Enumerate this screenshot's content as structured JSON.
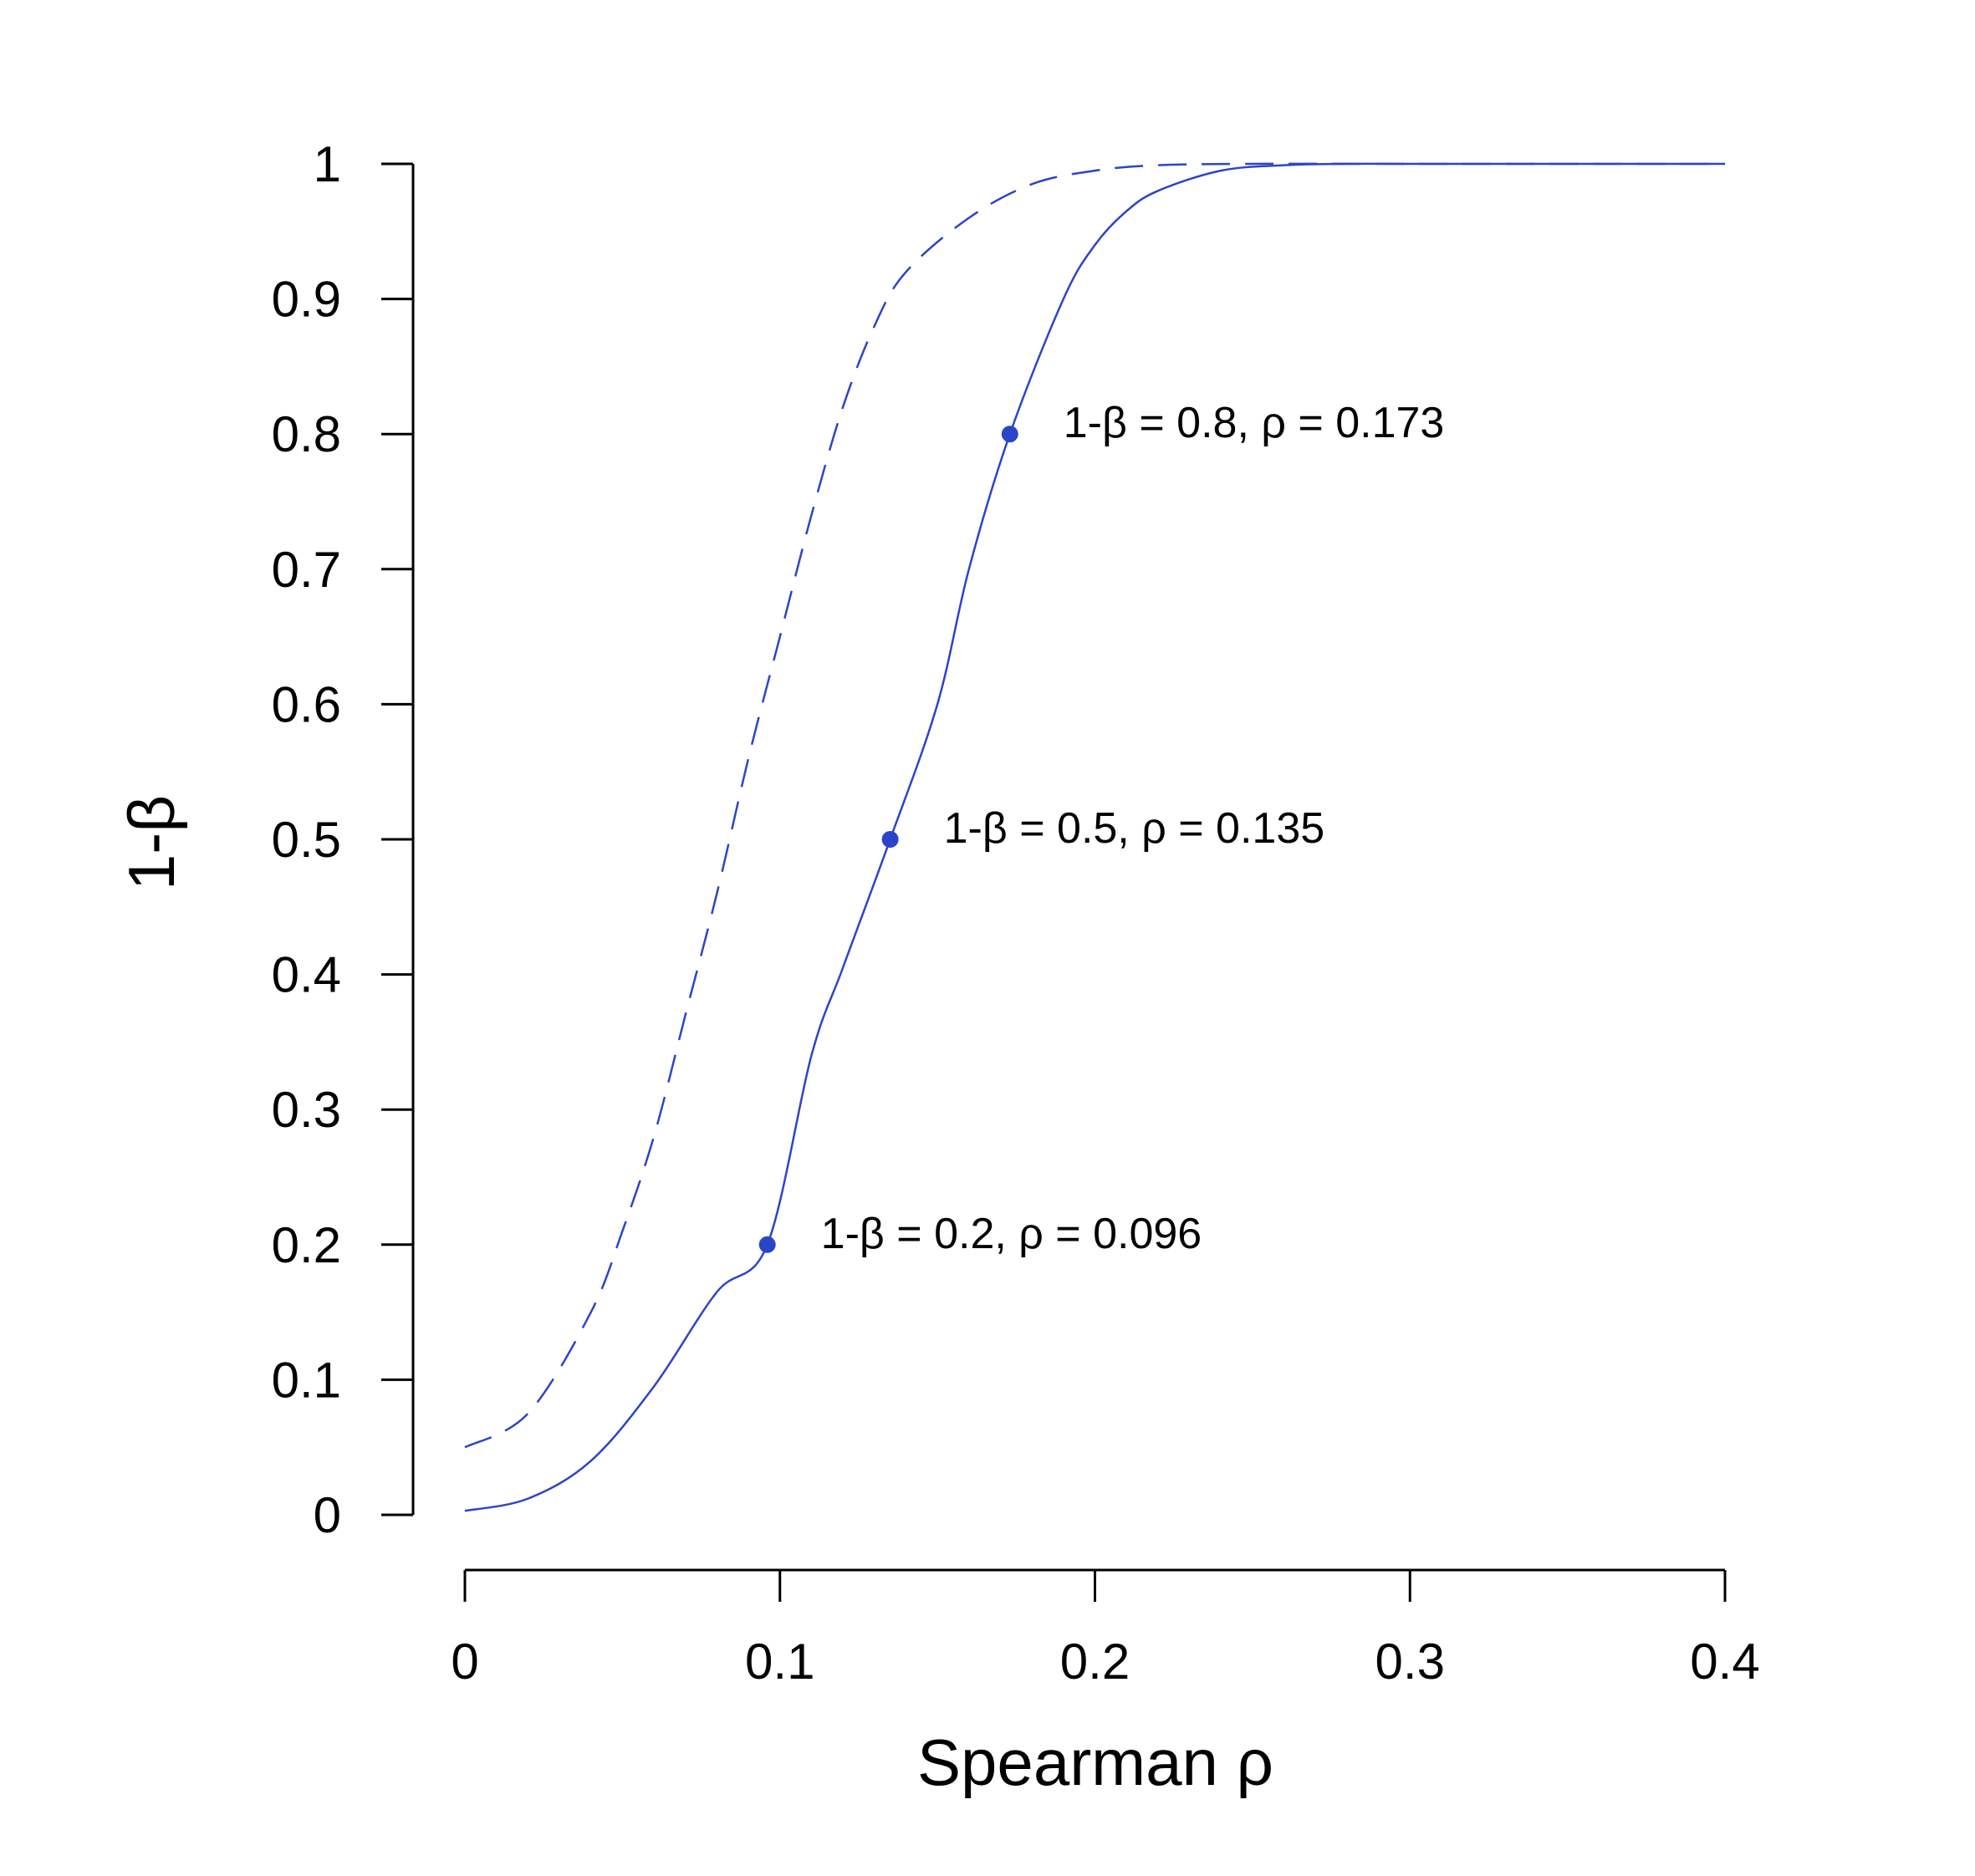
{
  "chart_data": {
    "type": "line",
    "xlabel": "Spearman ρ",
    "ylabel": "1-β",
    "xlim": [
      0,
      0.4
    ],
    "ylim": [
      0,
      1
    ],
    "x_ticks": [
      0,
      0.1,
      0.2,
      0.3,
      0.4
    ],
    "x_tick_labels": [
      "0",
      "0.1",
      "0.2",
      "0.3",
      "0.4"
    ],
    "y_ticks": [
      0,
      0.1,
      0.2,
      0.3,
      0.4,
      0.5,
      0.6,
      0.7,
      0.8,
      0.9,
      1
    ],
    "y_tick_labels": [
      "0",
      "0.1",
      "0.2",
      "0.3",
      "0.4",
      "0.5",
      "0.6",
      "0.7",
      "0.8",
      "0.9",
      "1"
    ],
    "grid": false,
    "line_color": "#2b45c8",
    "series": [
      {
        "style": "solid",
        "x": [
          0,
          0.02,
          0.04,
          0.06,
          0.08,
          0.096,
          0.11,
          0.12,
          0.135,
          0.15,
          0.16,
          0.173,
          0.19,
          0.2,
          0.21,
          0.22,
          0.24,
          0.26,
          0.28,
          0.3,
          0.35,
          0.4
        ],
        "y": [
          0.003,
          0.012,
          0.04,
          0.095,
          0.165,
          0.2,
          0.34,
          0.405,
          0.5,
          0.6,
          0.7,
          0.8,
          0.9,
          0.94,
          0.965,
          0.98,
          0.995,
          0.999,
          1,
          1,
          1,
          1
        ]
      },
      {
        "style": "dashed",
        "x": [
          0,
          0.02,
          0.04,
          0.05,
          0.06,
          0.07,
          0.08,
          0.09,
          0.1,
          0.11,
          0.12,
          0.13,
          0.14,
          0.16,
          0.18,
          0.2,
          0.22,
          0.25,
          0.3,
          0.4
        ],
        "y": [
          0.05,
          0.075,
          0.15,
          0.21,
          0.28,
          0.37,
          0.46,
          0.56,
          0.65,
          0.74,
          0.82,
          0.88,
          0.92,
          0.96,
          0.985,
          0.995,
          0.999,
          1,
          1,
          1
        ]
      }
    ],
    "points": [
      {
        "x": 0.096,
        "y": 0.2,
        "label": "1-β = 0.2, ρ = 0.096"
      },
      {
        "x": 0.135,
        "y": 0.5,
        "label": "1-β = 0.5, ρ = 0.135"
      },
      {
        "x": 0.173,
        "y": 0.8,
        "label": "1-β = 0.8, ρ = 0.173"
      }
    ]
  }
}
